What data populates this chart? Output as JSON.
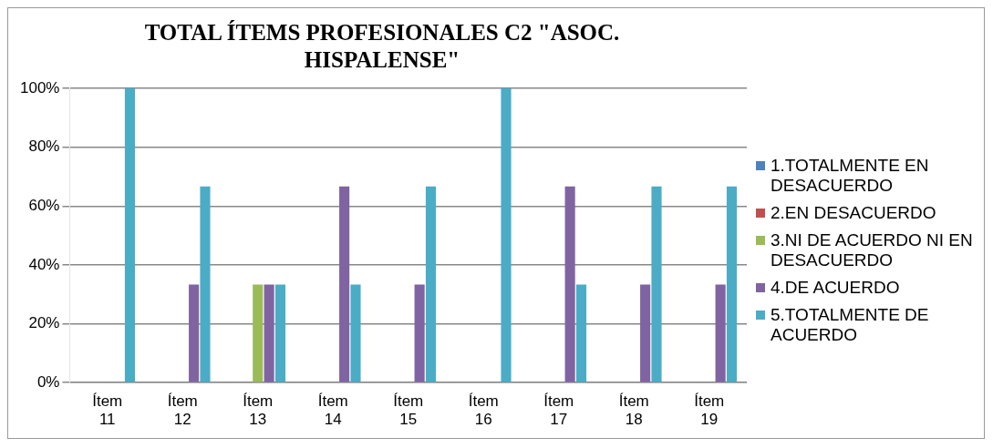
{
  "chart_data": {
    "type": "bar",
    "title": "TOTAL ÍTEMS PROFESIONALES C2 \"ASOC. HISPALENSE\"",
    "categories": [
      "Ítem 11",
      "Ítem 12",
      "Ítem 13",
      "Ítem 14",
      "Ítem 15",
      "Ítem 16",
      "Ítem 17",
      "Ítem 18",
      "Ítem 19"
    ],
    "series": [
      {
        "name": "1.TOTALMENTE EN DESACUERDO",
        "color": "#4f81bd",
        "values": [
          0,
          0,
          0,
          0,
          0,
          0,
          0,
          0,
          0
        ]
      },
      {
        "name": "2.EN DESACUERDO",
        "color": "#c0504d",
        "values": [
          0,
          0,
          0,
          0,
          0,
          0,
          0,
          0,
          0
        ]
      },
      {
        "name": "3.NI DE ACUERDO NI EN DESACUERDO",
        "color": "#9bbb59",
        "values": [
          0,
          0,
          33.3,
          0,
          0,
          0,
          0,
          0,
          0
        ]
      },
      {
        "name": "4.DE ACUERDO",
        "color": "#8064a2",
        "values": [
          0,
          33.3,
          33.3,
          66.7,
          33.3,
          0,
          66.7,
          33.3,
          33.3
        ]
      },
      {
        "name": "5.TOTALMENTE DE ACUERDO",
        "color": "#4bacc6",
        "values": [
          100,
          66.7,
          33.3,
          33.3,
          66.7,
          100,
          33.3,
          66.7,
          66.7
        ]
      }
    ],
    "ylim": [
      0,
      100
    ],
    "yticks": [
      {
        "value": 0,
        "label": "0%"
      },
      {
        "value": 20,
        "label": "20%"
      },
      {
        "value": 40,
        "label": "40%"
      },
      {
        "value": 60,
        "label": "60%"
      },
      {
        "value": 80,
        "label": "80%"
      },
      {
        "value": 100,
        "label": "100%"
      }
    ],
    "grid": "y",
    "legend": "right"
  }
}
